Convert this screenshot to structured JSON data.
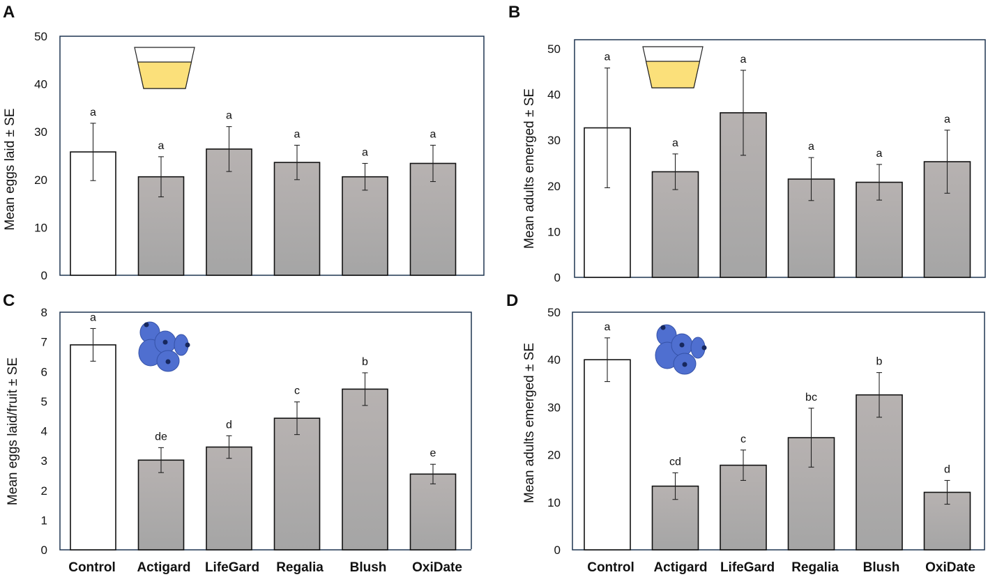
{
  "figure": {
    "panels": [
      "A",
      "B",
      "C",
      "D"
    ],
    "categories": [
      "Control",
      "Actigard",
      "LifeGard",
      "Regalia",
      "Blush",
      "OxiDate"
    ]
  },
  "colors": {
    "control_fill": "#ffffff",
    "treatment_fill_top": "#b7b2b1",
    "treatment_fill_bottom": "#a5a5a5",
    "frame": "#1f3550",
    "cup_liquid": "#fbe07a",
    "berry": "#4f6fd0",
    "berry_dark": "#17285e"
  },
  "chart_data": [
    {
      "panel": "A",
      "type": "bar",
      "title": "",
      "xlabel": "",
      "ylabel": "Mean eggs laid ± SE",
      "ylim": [
        0,
        50
      ],
      "yticks": [
        0,
        10,
        20,
        30,
        40,
        50
      ],
      "categories": [
        "Control",
        "Actigard",
        "LifeGard",
        "Regalia",
        "Blush",
        "OxiDate"
      ],
      "values": [
        25.8,
        20.6,
        26.4,
        23.6,
        20.6,
        23.4
      ],
      "errors": [
        6.0,
        4.2,
        4.7,
        3.6,
        2.8,
        3.8
      ],
      "letters": [
        "a",
        "a",
        "a",
        "a",
        "a",
        "a"
      ],
      "icon": "cup-icon",
      "grid": false
    },
    {
      "panel": "B",
      "type": "bar",
      "title": "",
      "xlabel": "",
      "ylabel": "Mean adults emerged ± SE",
      "ylim": [
        0,
        50
      ],
      "yticks": [
        0,
        10,
        20,
        30,
        40,
        50
      ],
      "categories": [
        "Control",
        "Actigard",
        "LifeGard",
        "Regalia",
        "Blush",
        "OxiDate"
      ],
      "values": [
        32.7,
        23.1,
        36.0,
        21.5,
        20.8,
        25.3
      ],
      "errors": [
        13.1,
        3.9,
        9.3,
        4.7,
        3.9,
        6.9
      ],
      "letters": [
        "a",
        "a",
        "a",
        "a",
        "a",
        "a"
      ],
      "icon": "cup-icon",
      "grid": false
    },
    {
      "panel": "C",
      "type": "bar",
      "title": "",
      "xlabel": "",
      "ylabel": "Mean eggs laid/fruit ± SE",
      "ylim": [
        0,
        8
      ],
      "yticks": [
        0,
        1,
        2,
        3,
        4,
        5,
        6,
        7,
        8
      ],
      "categories": [
        "Control",
        "Actigard",
        "LifeGard",
        "Regalia",
        "Blush",
        "OxiDate"
      ],
      "values": [
        6.9,
        3.02,
        3.46,
        4.43,
        5.41,
        2.55
      ],
      "errors": [
        0.55,
        0.42,
        0.38,
        0.55,
        0.55,
        0.33
      ],
      "letters": [
        "a",
        "de",
        "d",
        "c",
        "b",
        "e"
      ],
      "icon": "blueberries-icon",
      "grid": false
    },
    {
      "panel": "D",
      "type": "bar",
      "title": "",
      "xlabel": "",
      "ylabel": "Mean adults emerged ± SE",
      "ylim": [
        0,
        50
      ],
      "yticks": [
        0,
        10,
        20,
        30,
        40,
        50
      ],
      "categories": [
        "Control",
        "Actigard",
        "LifeGard",
        "Regalia",
        "Blush",
        "OxiDate"
      ],
      "values": [
        40.0,
        13.4,
        17.8,
        23.6,
        32.6,
        12.1
      ],
      "errors": [
        4.6,
        2.8,
        3.2,
        6.2,
        4.7,
        2.5
      ],
      "letters": [
        "a",
        "cd",
        "c",
        "bc",
        "b",
        "d"
      ],
      "icon": "blueberries-icon",
      "grid": false
    }
  ]
}
